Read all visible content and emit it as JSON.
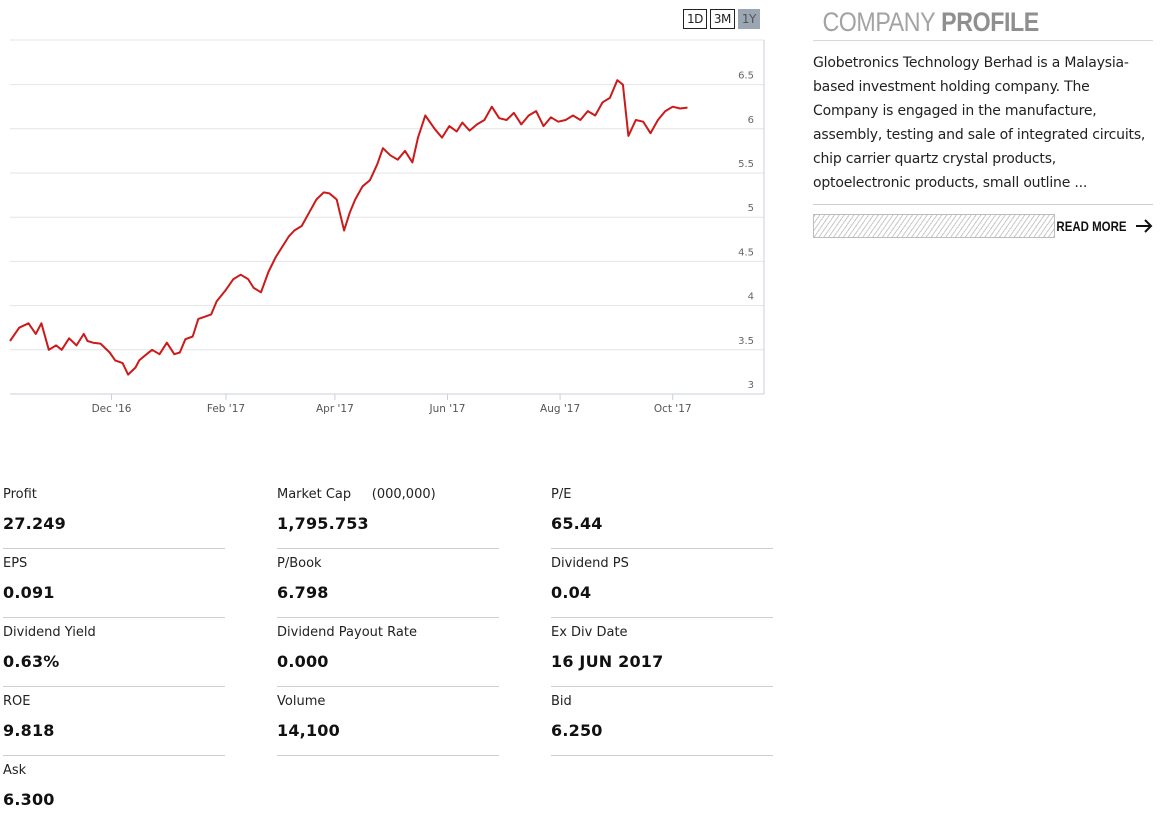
{
  "range_buttons": [
    {
      "label": "1D",
      "active": false
    },
    {
      "label": "3M",
      "active": false
    },
    {
      "label": "1Y",
      "active": true
    }
  ],
  "chart_data": {
    "type": "line",
    "title": "",
    "xlabel": "",
    "ylabel": "",
    "ylim": [
      3,
      6.75
    ],
    "y_ticks": [
      "6.5",
      "6",
      "5.5",
      "5",
      "4.5",
      "4",
      "3.5",
      "3"
    ],
    "y_tick_values": [
      6.5,
      6,
      5.5,
      5,
      4.5,
      4,
      3.5,
      3
    ],
    "x_tick_labels": [
      "Dec '16",
      "Feb '17",
      "Apr '17",
      "Jun '17",
      "Aug '17",
      "Oct '17"
    ],
    "x_tick_dates": [
      "2016-12-01",
      "2017-02-01",
      "2017-04-01",
      "2017-06-01",
      "2017-08-01",
      "2017-10-01"
    ],
    "x_range": [
      "2016-10-07",
      "2017-10-25"
    ],
    "grid": true,
    "line_color": "#cc1a1a",
    "series": [
      {
        "name": "",
        "x": [
          "2016-10-07",
          "2016-10-12",
          "2016-10-17",
          "2016-10-21",
          "2016-10-24",
          "2016-10-28",
          "2016-11-01",
          "2016-11-04",
          "2016-11-08",
          "2016-11-12",
          "2016-11-16",
          "2016-11-18",
          "2016-11-21",
          "2016-11-25",
          "2016-11-30",
          "2016-12-03",
          "2016-12-07",
          "2016-12-10",
          "2016-12-14",
          "2016-12-16",
          "2016-12-20",
          "2016-12-23",
          "2016-12-27",
          "2016-12-31",
          "2017-01-04",
          "2017-01-07",
          "2017-01-10",
          "2017-01-14",
          "2017-01-17",
          "2017-01-20",
          "2017-01-24",
          "2017-01-27",
          "2017-02-01",
          "2017-02-05",
          "2017-02-09",
          "2017-02-13",
          "2017-02-16",
          "2017-02-20",
          "2017-02-24",
          "2017-02-28",
          "2017-03-03",
          "2017-03-07",
          "2017-03-10",
          "2017-03-14",
          "2017-03-18",
          "2017-03-22",
          "2017-03-26",
          "2017-03-29",
          "2017-04-02",
          "2017-04-06",
          "2017-04-09",
          "2017-04-12",
          "2017-04-16",
          "2017-04-20",
          "2017-04-24",
          "2017-04-27",
          "2017-05-01",
          "2017-05-05",
          "2017-05-09",
          "2017-05-13",
          "2017-05-16",
          "2017-05-20",
          "2017-05-25",
          "2017-05-29",
          "2017-06-02",
          "2017-06-06",
          "2017-06-09",
          "2017-06-13",
          "2017-06-17",
          "2017-06-21",
          "2017-06-25",
          "2017-06-29",
          "2017-07-03",
          "2017-07-07",
          "2017-07-11",
          "2017-07-15",
          "2017-07-19",
          "2017-07-23",
          "2017-07-27",
          "2017-07-31",
          "2017-08-04",
          "2017-08-08",
          "2017-08-12",
          "2017-08-16",
          "2017-08-20",
          "2017-08-24",
          "2017-08-28",
          "2017-09-01",
          "2017-09-04",
          "2017-09-07",
          "2017-09-11",
          "2017-09-15",
          "2017-09-19",
          "2017-09-23",
          "2017-09-27",
          "2017-10-01",
          "2017-10-05",
          "2017-10-09"
        ],
        "values": [
          3.6,
          3.75,
          3.8,
          3.68,
          3.8,
          3.5,
          3.55,
          3.5,
          3.63,
          3.55,
          3.68,
          3.6,
          3.58,
          3.57,
          3.47,
          3.38,
          3.35,
          3.22,
          3.3,
          3.38,
          3.45,
          3.5,
          3.45,
          3.58,
          3.45,
          3.47,
          3.62,
          3.65,
          3.85,
          3.87,
          3.9,
          4.05,
          4.18,
          4.3,
          4.35,
          4.3,
          4.2,
          4.15,
          4.38,
          4.55,
          4.65,
          4.78,
          4.85,
          4.9,
          5.05,
          5.2,
          5.28,
          5.27,
          5.2,
          4.85,
          5.05,
          5.2,
          5.35,
          5.42,
          5.6,
          5.78,
          5.7,
          5.65,
          5.75,
          5.62,
          5.9,
          6.15,
          6.0,
          5.9,
          6.03,
          5.97,
          6.07,
          5.98,
          6.05,
          6.1,
          6.25,
          6.12,
          6.1,
          6.18,
          6.05,
          6.15,
          6.2,
          6.03,
          6.13,
          6.08,
          6.1,
          6.15,
          6.1,
          6.2,
          6.15,
          6.3,
          6.35,
          6.55,
          6.5,
          5.92,
          6.1,
          6.08,
          5.95,
          6.1,
          6.2,
          6.25,
          6.23,
          6.24
        ]
      }
    ]
  },
  "profile": {
    "title_light": "COMPANY",
    "title_bold": "PROFILE",
    "text": "Globetronics Technology Berhad is a Malaysia-based investment holding company. The Company is engaged in the manufacture, assembly, testing and sale of integrated circuits, chip carrier quartz crystal products, optoelectronic products, small outline ...",
    "read_more": "READ MORE"
  },
  "stats": [
    {
      "label": "Profit",
      "value": "27.249"
    },
    {
      "label": "Market Cap     (000,000)",
      "value": "1,795.753"
    },
    {
      "label": "P/E",
      "value": "65.44"
    },
    {
      "label": "EPS",
      "value": "0.091"
    },
    {
      "label": "P/Book",
      "value": "6.798"
    },
    {
      "label": "Dividend PS",
      "value": "0.04"
    },
    {
      "label": "Dividend Yield",
      "value": "0.63%"
    },
    {
      "label": "Dividend Payout Rate",
      "value": "0.000"
    },
    {
      "label": "Ex Div Date",
      "value": "16 JUN 2017"
    },
    {
      "label": "ROE",
      "value": "9.818"
    },
    {
      "label": "Volume",
      "value": "14,100"
    },
    {
      "label": "Bid",
      "value": "6.250"
    },
    {
      "label": "Ask",
      "value": "6.300"
    }
  ]
}
